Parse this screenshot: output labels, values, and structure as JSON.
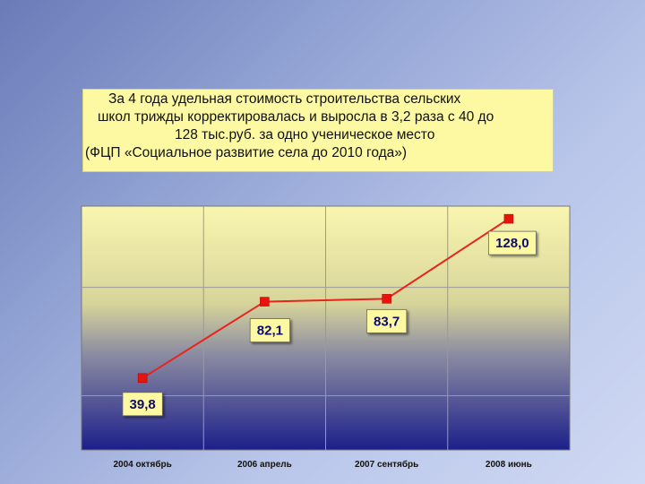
{
  "title_lines": [
    "За 4 года удельная стоимость строительства сельских",
    "школ трижды корректировалась и выросла в 3,2 раза с 40 до",
    "128 тыс.руб. за одно ученическое место",
    "(ФЦП «Социальное развитие села до 2010 года»)"
  ],
  "chart_data": {
    "type": "line",
    "categories": [
      "2004 октябрь",
      "2006 апрель",
      "2007 сентябрь",
      "2008 июнь"
    ],
    "values": [
      39.8,
      82.1,
      83.7,
      128.0
    ],
    "data_labels": [
      "39,8",
      "82,1",
      "83,7",
      "128,0"
    ],
    "ylim": [
      0,
      135
    ],
    "grid": true,
    "line_color": "#e8241c",
    "marker_color": "#e8140c",
    "plot_gradient": [
      "#f9f6b0",
      "#1c1f8a"
    ],
    "label_box_color": "#fdf9a2",
    "label_text_color": "#0b0b6a"
  }
}
